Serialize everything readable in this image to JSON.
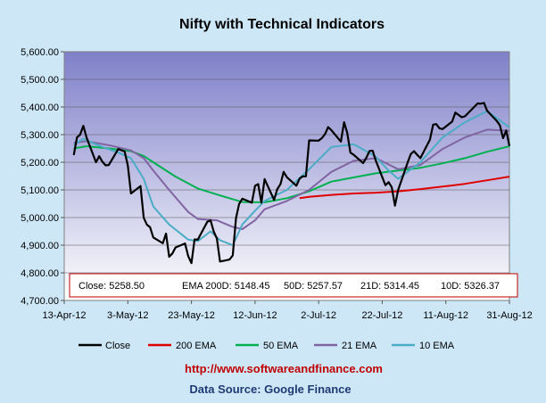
{
  "chart_data": {
    "type": "line",
    "title": "Nifty with Technical Indicators",
    "xlabel": "",
    "ylabel": "",
    "ylim": [
      4700,
      5600
    ],
    "yticks": [
      "4,700.00",
      "4,800.00",
      "4,900.00",
      "5,000.00",
      "5,100.00",
      "5,200.00",
      "5,300.00",
      "5,400.00",
      "5,500.00",
      "5,600.00"
    ],
    "xticks": [
      "13-Apr-12",
      "3-May-12",
      "23-May-12",
      "12-Jun-12",
      "2-Jul-12",
      "22-Jul-12",
      "11-Aug-12",
      "31-Aug-12"
    ],
    "xlim": [
      "2012-04-13",
      "2012-08-31"
    ],
    "grid": true,
    "legend_position": "bottom",
    "annotation": {
      "close": "Close: 5258.50",
      "ema200": "EMA  200D: 5148.45",
      "ema50": "50D: 5257.57",
      "ema21": "21D: 5314.45",
      "ema10": "10D: 5326.37"
    },
    "series": [
      {
        "name": "Close",
        "color": "#000000",
        "points": [
          [
            "2012-04-16",
            5226
          ],
          [
            "2012-04-17",
            5290
          ],
          [
            "2012-04-18",
            5300
          ],
          [
            "2012-04-19",
            5332
          ],
          [
            "2012-04-20",
            5290
          ],
          [
            "2012-04-23",
            5200
          ],
          [
            "2012-04-24",
            5222
          ],
          [
            "2012-04-25",
            5202
          ],
          [
            "2012-04-26",
            5189
          ],
          [
            "2012-04-27",
            5190
          ],
          [
            "2012-04-30",
            5248
          ],
          [
            "2012-05-02",
            5239
          ],
          [
            "2012-05-03",
            5188
          ],
          [
            "2012-05-04",
            5087
          ],
          [
            "2012-05-07",
            5114
          ],
          [
            "2012-05-08",
            4999
          ],
          [
            "2012-05-09",
            4974
          ],
          [
            "2012-05-10",
            4965
          ],
          [
            "2012-05-11",
            4928
          ],
          [
            "2012-05-14",
            4907
          ],
          [
            "2012-05-15",
            4942
          ],
          [
            "2012-05-16",
            4858
          ],
          [
            "2012-05-17",
            4870
          ],
          [
            "2012-05-18",
            4892
          ],
          [
            "2012-05-21",
            4906
          ],
          [
            "2012-05-22",
            4860
          ],
          [
            "2012-05-23",
            4835
          ],
          [
            "2012-05-24",
            4921
          ],
          [
            "2012-05-25",
            4920
          ],
          [
            "2012-05-28",
            4985
          ],
          [
            "2012-05-29",
            4990
          ],
          [
            "2012-05-30",
            4950
          ],
          [
            "2012-05-31",
            4924
          ],
          [
            "2012-06-01",
            4841
          ],
          [
            "2012-06-04",
            4848
          ],
          [
            "2012-06-05",
            4863
          ],
          [
            "2012-06-06",
            4997
          ],
          [
            "2012-06-07",
            5049
          ],
          [
            "2012-06-08",
            5068
          ],
          [
            "2012-06-11",
            5054
          ],
          [
            "2012-06-12",
            5115
          ],
          [
            "2012-06-13",
            5121
          ],
          [
            "2012-06-14",
            5054
          ],
          [
            "2012-06-15",
            5139
          ],
          [
            "2012-06-18",
            5064
          ],
          [
            "2012-06-19",
            5103
          ],
          [
            "2012-06-20",
            5121
          ],
          [
            "2012-06-21",
            5165
          ],
          [
            "2012-06-22",
            5146
          ],
          [
            "2012-06-25",
            5115
          ],
          [
            "2012-06-26",
            5141
          ],
          [
            "2012-06-27",
            5149
          ],
          [
            "2012-06-28",
            5149
          ],
          [
            "2012-06-29",
            5279
          ],
          [
            "2012-07-02",
            5278
          ],
          [
            "2012-07-03",
            5287
          ],
          [
            "2012-07-04",
            5302
          ],
          [
            "2012-07-05",
            5327
          ],
          [
            "2012-07-06",
            5316
          ],
          [
            "2012-07-09",
            5275
          ],
          [
            "2012-07-10",
            5345
          ],
          [
            "2012-07-11",
            5306
          ],
          [
            "2012-07-12",
            5235
          ],
          [
            "2012-07-13",
            5227
          ],
          [
            "2012-07-16",
            5197
          ],
          [
            "2012-07-17",
            5216
          ],
          [
            "2012-07-18",
            5241
          ],
          [
            "2012-07-19",
            5242
          ],
          [
            "2012-07-20",
            5205
          ],
          [
            "2012-07-23",
            5117
          ],
          [
            "2012-07-24",
            5128
          ],
          [
            "2012-07-25",
            5110
          ],
          [
            "2012-07-26",
            5043
          ],
          [
            "2012-07-27",
            5100
          ],
          [
            "2012-07-30",
            5199
          ],
          [
            "2012-07-31",
            5230
          ],
          [
            "2012-08-01",
            5240
          ],
          [
            "2012-08-02",
            5227
          ],
          [
            "2012-08-03",
            5215
          ],
          [
            "2012-08-06",
            5282
          ],
          [
            "2012-08-07",
            5336
          ],
          [
            "2012-08-08",
            5338
          ],
          [
            "2012-08-09",
            5323
          ],
          [
            "2012-08-10",
            5320
          ],
          [
            "2012-08-13",
            5347
          ],
          [
            "2012-08-14",
            5380
          ],
          [
            "2012-08-16",
            5363
          ],
          [
            "2012-08-17",
            5366
          ],
          [
            "2012-08-21",
            5413
          ],
          [
            "2012-08-22",
            5412
          ],
          [
            "2012-08-23",
            5415
          ],
          [
            "2012-08-24",
            5386
          ],
          [
            "2012-08-27",
            5350
          ],
          [
            "2012-08-28",
            5334
          ],
          [
            "2012-08-29",
            5287
          ],
          [
            "2012-08-30",
            5315
          ],
          [
            "2012-08-31",
            5259
          ]
        ]
      },
      {
        "name": "200 EMA",
        "color": "#e00000",
        "points": [
          [
            "2012-06-26",
            5070
          ],
          [
            "2012-06-29",
            5075
          ],
          [
            "2012-07-06",
            5082
          ],
          [
            "2012-07-13",
            5087
          ],
          [
            "2012-07-20",
            5090
          ],
          [
            "2012-07-27",
            5095
          ],
          [
            "2012-08-03",
            5103
          ],
          [
            "2012-08-10",
            5112
          ],
          [
            "2012-08-17",
            5122
          ],
          [
            "2012-08-24",
            5135
          ],
          [
            "2012-08-31",
            5148
          ]
        ]
      },
      {
        "name": "50 EMA",
        "color": "#00b050",
        "points": [
          [
            "2012-04-16",
            5250
          ],
          [
            "2012-04-20",
            5258
          ],
          [
            "2012-04-27",
            5250
          ],
          [
            "2012-05-04",
            5240
          ],
          [
            "2012-05-08",
            5223
          ],
          [
            "2012-05-11",
            5200
          ],
          [
            "2012-05-18",
            5148
          ],
          [
            "2012-05-25",
            5105
          ],
          [
            "2012-06-01",
            5080
          ],
          [
            "2012-06-08",
            5056
          ],
          [
            "2012-06-15",
            5055
          ],
          [
            "2012-06-22",
            5070
          ],
          [
            "2012-06-29",
            5095
          ],
          [
            "2012-07-06",
            5130
          ],
          [
            "2012-07-13",
            5145
          ],
          [
            "2012-07-20",
            5160
          ],
          [
            "2012-07-27",
            5170
          ],
          [
            "2012-08-03",
            5180
          ],
          [
            "2012-08-10",
            5196
          ],
          [
            "2012-08-17",
            5215
          ],
          [
            "2012-08-24",
            5238
          ],
          [
            "2012-08-31",
            5258
          ]
        ]
      },
      {
        "name": "21 EMA",
        "color": "#8064a2",
        "points": [
          [
            "2012-04-16",
            5270
          ],
          [
            "2012-04-20",
            5276
          ],
          [
            "2012-04-27",
            5262
          ],
          [
            "2012-05-04",
            5243
          ],
          [
            "2012-05-08",
            5215
          ],
          [
            "2012-05-11",
            5170
          ],
          [
            "2012-05-16",
            5100
          ],
          [
            "2012-05-22",
            5020
          ],
          [
            "2012-05-25",
            4995
          ],
          [
            "2012-05-31",
            4990
          ],
          [
            "2012-06-05",
            4966
          ],
          [
            "2012-06-08",
            4958
          ],
          [
            "2012-06-12",
            4990
          ],
          [
            "2012-06-15",
            5030
          ],
          [
            "2012-06-22",
            5060
          ],
          [
            "2012-06-29",
            5100
          ],
          [
            "2012-07-06",
            5165
          ],
          [
            "2012-07-13",
            5205
          ],
          [
            "2012-07-20",
            5215
          ],
          [
            "2012-07-27",
            5175
          ],
          [
            "2012-08-03",
            5190
          ],
          [
            "2012-08-10",
            5248
          ],
          [
            "2012-08-17",
            5290
          ],
          [
            "2012-08-24",
            5318
          ],
          [
            "2012-08-31",
            5314
          ]
        ]
      },
      {
        "name": "10 EMA",
        "color": "#4bacc6",
        "points": [
          [
            "2012-04-16",
            5262
          ],
          [
            "2012-04-19",
            5285
          ],
          [
            "2012-04-24",
            5260
          ],
          [
            "2012-04-30",
            5235
          ],
          [
            "2012-05-04",
            5215
          ],
          [
            "2012-05-08",
            5140
          ],
          [
            "2012-05-11",
            5040
          ],
          [
            "2012-05-16",
            4975
          ],
          [
            "2012-05-22",
            4920
          ],
          [
            "2012-05-25",
            4915
          ],
          [
            "2012-05-29",
            4950
          ],
          [
            "2012-06-01",
            4918
          ],
          [
            "2012-06-05",
            4900
          ],
          [
            "2012-06-08",
            4975
          ],
          [
            "2012-06-12",
            5025
          ],
          [
            "2012-06-15",
            5060
          ],
          [
            "2012-06-22",
            5100
          ],
          [
            "2012-06-29",
            5175
          ],
          [
            "2012-07-06",
            5255
          ],
          [
            "2012-07-13",
            5265
          ],
          [
            "2012-07-20",
            5220
          ],
          [
            "2012-07-24",
            5170
          ],
          [
            "2012-07-27",
            5140
          ],
          [
            "2012-08-03",
            5200
          ],
          [
            "2012-08-10",
            5290
          ],
          [
            "2012-08-17",
            5345
          ],
          [
            "2012-08-24",
            5385
          ],
          [
            "2012-08-31",
            5326
          ]
        ]
      }
    ]
  },
  "footer": {
    "url": "http://www.softwareandfinance.com",
    "source": "Data Source: Google Finance"
  }
}
